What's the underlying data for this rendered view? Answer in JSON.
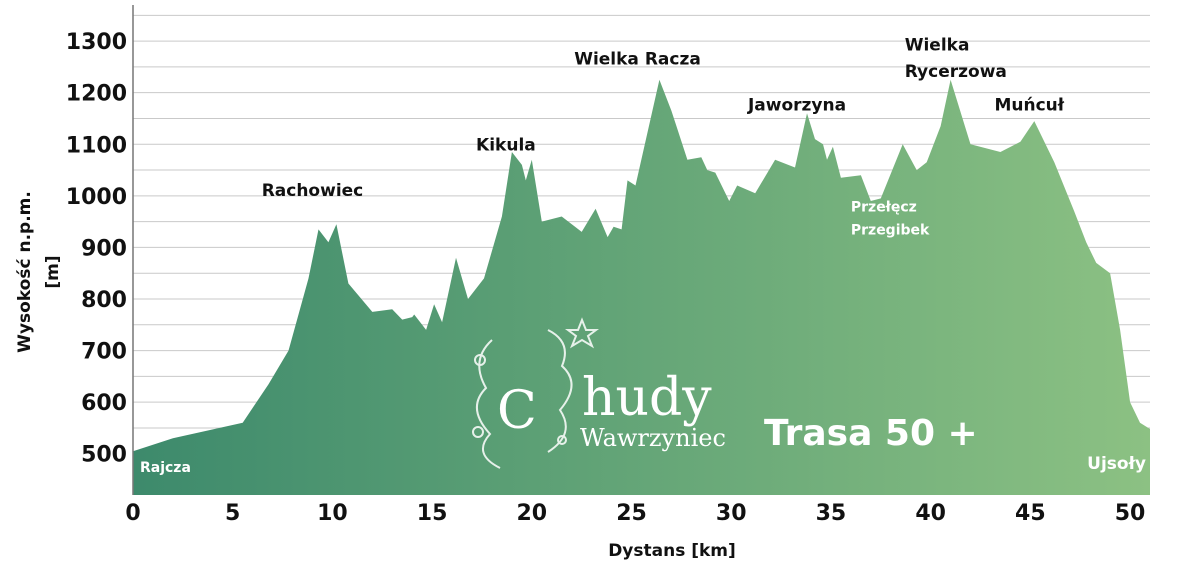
{
  "colors": {
    "fill_start": "#3d8a6c",
    "fill_end": "#8cc183",
    "grid": "#c9c9c9",
    "axis": "#777777"
  },
  "branding": {
    "logo_word": "hudy",
    "logo_initial": "C",
    "logo_sub": "Wawrzyniec",
    "route_label": "Trasa 50 +"
  },
  "chart_data": {
    "type": "area",
    "xlabel": "Dystans [km]",
    "ylabel_lines": [
      "Wysokość n.p.m.",
      "[m]"
    ],
    "xlim": [
      0,
      51
    ],
    "ylim": [
      420,
      1370
    ],
    "xticks": [
      0,
      5,
      10,
      15,
      20,
      25,
      30,
      35,
      40,
      45,
      50
    ],
    "yticks": [
      500,
      600,
      700,
      800,
      900,
      1000,
      1100,
      1200,
      1300
    ],
    "grid": true,
    "x": [
      0,
      2,
      5.5,
      6.8,
      7.8,
      8.8,
      9.3,
      9.8,
      10.2,
      10.8,
      12,
      13,
      13.5,
      14,
      14.1,
      14.7,
      15.1,
      15.5,
      16.2,
      16.8,
      17.6,
      18.5,
      19,
      19.5,
      19.7,
      20,
      20.5,
      21.5,
      22.5,
      23.2,
      23.8,
      24.1,
      24.5,
      24.8,
      25.2,
      26.4,
      27,
      27.8,
      28.5,
      28.8,
      29.2,
      29.9,
      30.3,
      31.2,
      32.2,
      33.2,
      33.8,
      34.2,
      34.6,
      34.8,
      35.1,
      35.5,
      36.5,
      37,
      37.5,
      38.6,
      39.3,
      39.8,
      40.5,
      41,
      42,
      43.5,
      44.5,
      45.2,
      46.2,
      47.2,
      47.8,
      48.3,
      49,
      49.5,
      50,
      50.5,
      51
    ],
    "y": [
      505,
      530,
      560,
      635,
      700,
      840,
      935,
      910,
      945,
      830,
      775,
      780,
      760,
      765,
      770,
      740,
      790,
      755,
      880,
      800,
      840,
      960,
      1085,
      1060,
      1030,
      1070,
      950,
      960,
      930,
      975,
      920,
      940,
      935,
      1030,
      1020,
      1225,
      1165,
      1070,
      1075,
      1050,
      1045,
      990,
      1020,
      1005,
      1070,
      1055,
      1160,
      1110,
      1100,
      1070,
      1095,
      1035,
      1040,
      990,
      995,
      1100,
      1050,
      1065,
      1135,
      1225,
      1100,
      1085,
      1105,
      1145,
      1065,
      970,
      910,
      870,
      850,
      740,
      600,
      560,
      548
    ],
    "annotations": [
      {
        "text": "Rachowiec",
        "x": 9,
        "y": 1000,
        "anchor": "middle",
        "style": "peak"
      },
      {
        "text": "Kikula",
        "x": 18.7,
        "y": 1088,
        "anchor": "middle",
        "style": "peak"
      },
      {
        "text": "Wielka Racza",
        "x": 25.3,
        "y": 1255,
        "anchor": "middle",
        "style": "peak"
      },
      {
        "text": "Jaworzyna",
        "x": 33.3,
        "y": 1165,
        "anchor": "middle",
        "style": "peak"
      },
      {
        "text": "Wielka",
        "x": 38.7,
        "y": 1282,
        "anchor": "start",
        "style": "peak"
      },
      {
        "text": "Rycerzowa",
        "x": 38.7,
        "y": 1230,
        "anchor": "start",
        "style": "peak"
      },
      {
        "text": "Muńcuł",
        "x": 43.2,
        "y": 1165,
        "anchor": "start",
        "style": "peak"
      },
      {
        "text": "Przełęcz",
        "x": 36,
        "y": 970,
        "anchor": "start",
        "style": "inarea"
      },
      {
        "text": "Przegibek",
        "x": 36,
        "y": 925,
        "anchor": "start",
        "style": "inarea"
      },
      {
        "text": "Rajcza",
        "x": 0.35,
        "y": 465,
        "anchor": "start",
        "style": "inarea"
      },
      {
        "text": "Ujsoły",
        "x": 50.8,
        "y": 470,
        "anchor": "end",
        "style": "inarea-big"
      }
    ]
  }
}
